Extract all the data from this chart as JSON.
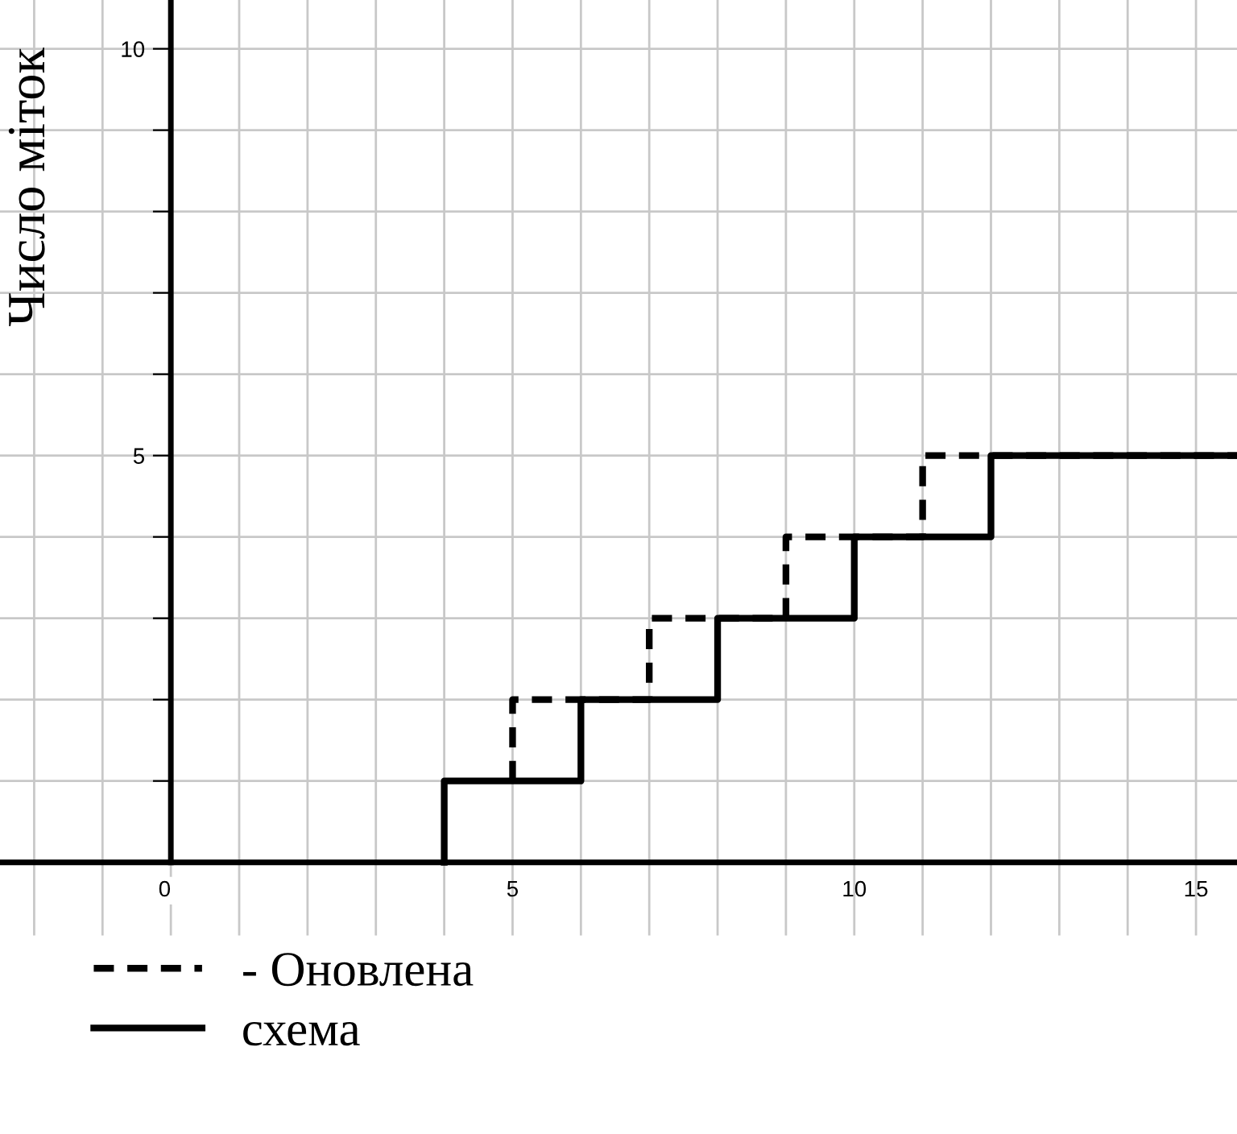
{
  "chart_data": {
    "type": "step",
    "ylabel": "Число міток",
    "xlim": [
      -2.5,
      15.6
    ],
    "ylim": [
      -0.9,
      10.6
    ],
    "xticks": [
      {
        "value": -2,
        "label": null
      },
      {
        "value": -1,
        "label": null
      },
      0,
      {
        "value": 1,
        "label": null
      },
      {
        "value": 2,
        "label": null
      },
      {
        "value": 3,
        "label": null
      },
      {
        "value": 4,
        "label": null
      },
      5,
      {
        "value": 6,
        "label": null
      },
      {
        "value": 7,
        "label": null
      },
      {
        "value": 8,
        "label": null
      },
      {
        "value": 9,
        "label": null
      },
      10,
      {
        "value": 11,
        "label": null
      },
      {
        "value": 12,
        "label": null
      },
      {
        "value": 13,
        "label": null
      },
      {
        "value": 14,
        "label": null
      },
      15
    ],
    "yticks": [
      {
        "value": 1,
        "label": null
      },
      {
        "value": 2,
        "label": null
      },
      {
        "value": 3,
        "label": null
      },
      {
        "value": 4,
        "label": null
      },
      5,
      {
        "value": 6,
        "label": null
      },
      {
        "value": 7,
        "label": null
      },
      {
        "value": 8,
        "label": null
      },
      {
        "value": 9,
        "label": null
      },
      10
    ],
    "grid": true,
    "legend": "bottom",
    "marker": "none",
    "series": [
      {
        "name": "- Оновлена",
        "color": "#000000",
        "line_style": "dashed",
        "x": [
          5,
          5,
          7,
          9,
          11,
          15.6
        ],
        "values": [
          1,
          2,
          3,
          4,
          5,
          5
        ]
      },
      {
        "name": "схема",
        "color": "#000000",
        "line_style": "solid",
        "x": [
          4,
          4,
          6,
          8,
          10,
          12,
          15.6
        ],
        "values": [
          0,
          1,
          2,
          3,
          4,
          5,
          5
        ]
      }
    ]
  }
}
